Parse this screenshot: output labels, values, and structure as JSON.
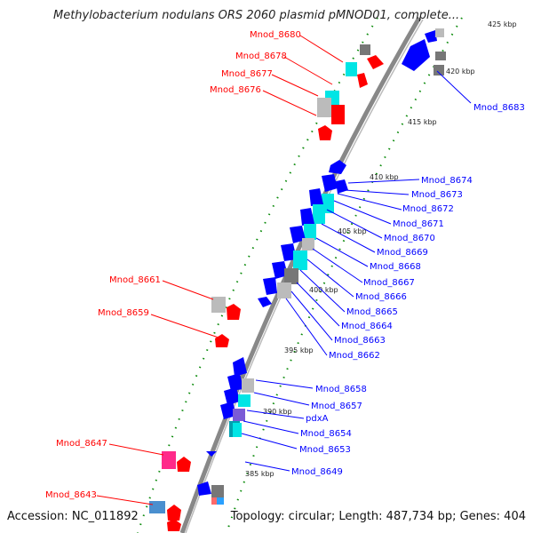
{
  "title": "Methylobacterium nodulans ORS 2060 plasmid pMNOD01, complete...",
  "footer": {
    "accession": "Accession: NC_011892",
    "topology": "Topology: circular; Length: 487,734 bp; Genes: 404"
  },
  "colors": {
    "forward": "#ff0000",
    "reverse": "#0000ff",
    "backbone": "#888888",
    "dots": "#0a8a0a"
  },
  "ticks": [
    "425 kbp",
    "420 kbp",
    "415 kbp",
    "410 kbp",
    "405 kbp",
    "400 kbp",
    "395 kbp",
    "390 kbp",
    "385 kbp"
  ],
  "labels": {
    "left": [
      "Mnod_8680",
      "Mnod_8678",
      "Mnod_8677",
      "Mnod_8676",
      "Mnod_8661",
      "Mnod_8659",
      "Mnod_8647",
      "Mnod_8643"
    ],
    "right": [
      "Mnod_8683",
      "Mnod_8674",
      "Mnod_8673",
      "Mnod_8672",
      "Mnod_8671",
      "Mnod_8670",
      "Mnod_8669",
      "Mnod_8668",
      "Mnod_8667",
      "Mnod_8666",
      "Mnod_8665",
      "Mnod_8664",
      "Mnod_8663",
      "Mnod_8662",
      "Mnod_8658",
      "Mnod_8657",
      "pdxA",
      "Mnod_8654",
      "Mnod_8653",
      "Mnod_8649"
    ]
  }
}
